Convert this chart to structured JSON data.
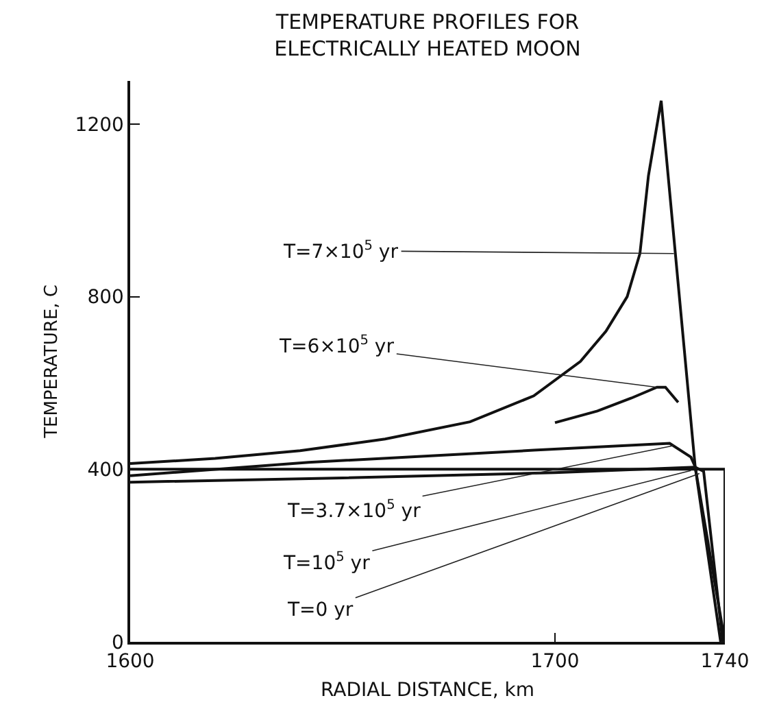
{
  "chart_data": {
    "type": "line",
    "title": "TEMPERATURE PROFILES FOR\nELECTRICALLY HEATED MOON",
    "xlabel": "RADIAL DISTANCE, km",
    "ylabel": "TEMPERATURE, C",
    "xlim": [
      1600,
      1740
    ],
    "xticks": [
      1600,
      1700,
      1740
    ],
    "ylim": [
      0,
      1300
    ],
    "yticks": [
      0,
      400,
      800,
      1200
    ],
    "grid": false,
    "series": [
      {
        "color": "#111111",
        "x": [
          1600,
          1620,
          1640,
          1660,
          1680,
          1695,
          1706,
          1712,
          1717,
          1720,
          1722,
          1725,
          1729,
          1733,
          1740
        ],
        "values": [
          413,
          425,
          443,
          470,
          510,
          570,
          650,
          720,
          800,
          900,
          1080,
          1254,
          830,
          406,
          0
        ]
      },
      {
        "color": "#111111",
        "x": [
          1700,
          1710,
          1718,
          1724,
          1726,
          1729
        ],
        "values": [
          508,
          535,
          565,
          590,
          590,
          555
        ]
      },
      {
        "color": "#111111",
        "x": [
          1600,
          1642,
          1695,
          1727,
          1732,
          1733,
          1739
        ],
        "values": [
          385,
          416,
          444,
          460,
          428,
          406,
          0
        ]
      },
      {
        "color": "#111111",
        "x": [
          1600,
          1650,
          1700,
          1733,
          1735,
          1739.5
        ],
        "values": [
          370,
          380,
          392,
          405,
          395,
          0
        ]
      },
      {
        "color": "#111111",
        "x": [
          1600,
          1740,
          1740
        ],
        "values": [
          400,
          400,
          0
        ]
      }
    ],
    "annotations": [
      {
        "text": "T=7×10$^{5}$ yr",
        "x": 1728,
        "y": 900
      },
      {
        "text": "T=6×10$^{5}$ yr",
        "x": 1724,
        "y": 590
      },
      {
        "text": "T=3.7×10$^{5}$ yr",
        "x": 1728,
        "y": 455
      },
      {
        "text": "T=10$^{5}$ yr",
        "x": 1732,
        "y": 397
      },
      {
        "text": "T=0 yr",
        "x": 1734,
        "y": 390
      }
    ]
  }
}
